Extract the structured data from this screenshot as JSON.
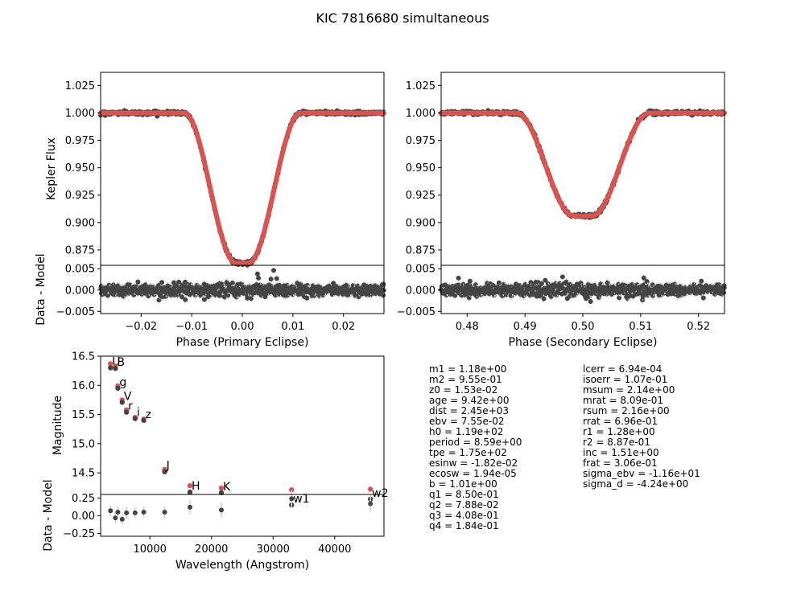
{
  "title": "KIC 7816680 simultaneous",
  "colors": {
    "model": "#d9534f",
    "data": "#444444",
    "errorbar": "#cfcfcf",
    "frame": "#000000"
  },
  "parameters_left": [
    "m1 = 1.18e+00",
    "m2 = 9.55e-01",
    "z0 = 1.53e-02",
    "age = 9.42e+00",
    "dist = 2.45e+03",
    "ebv = 7.55e-02",
    "h0 = 1.19e+02",
    "period = 8.59e+00",
    "tpe = 1.75e+02",
    "esinw = -1.82e-02",
    "ecosw = 1.94e-05",
    "b = 1.01e+00",
    "q1 = 8.50e-01",
    "q2 = 7.88e-02",
    "q3 = 4.08e-01",
    "q4 = 1.84e-01"
  ],
  "parameters_right": [
    "lcerr = 6.94e-04",
    "isoerr = 1.07e-01",
    "msum = 2.14e+00",
    "mrat = 8.09e-01",
    "rsum = 2.16e+00",
    "rrat = 6.96e-01",
    "r1 = 1.28e+00",
    "r2 = 8.87e-01",
    "inc = 1.51e+00",
    "frat = 3.06e-01",
    "sigma_ebv = -1.16e+01",
    "sigma_d = -4.24e+00"
  ],
  "chart_data": [
    {
      "id": "primary",
      "type": "scatter",
      "xlabel": "Phase (Primary Eclipse)",
      "ylabel": "Kepler Flux",
      "resid_ylabel": "Data - Model",
      "xlim": [
        -0.028,
        0.028
      ],
      "ylim": [
        0.861,
        1.037
      ],
      "resid_ylim": [
        -0.0055,
        0.0058
      ],
      "xticks": [
        -0.02,
        -0.01,
        0.0,
        0.01,
        0.02
      ],
      "xticklabels": [
        "−0.02",
        "−0.01",
        "0.00",
        "0.01",
        "0.02"
      ],
      "yticks": [
        0.875,
        0.9,
        0.925,
        0.95,
        0.975,
        1.0,
        1.025
      ],
      "yticklabels": [
        "0.875",
        "0.900",
        "0.925",
        "0.950",
        "0.975",
        "1.000",
        "1.025"
      ],
      "resid_yticks": [
        -0.005,
        0.0,
        0.005
      ],
      "resid_yticklabels": [
        "−0.005",
        "0.000",
        "0.005"
      ],
      "eclipse": {
        "center": 0.0,
        "depth": 0.137,
        "ingress_halfwidth": 0.0115,
        "bottom_halfwidth": 0.0012
      },
      "residual_outliers": [
        [
          -0.0075,
          -0.0022
        ],
        [
          -0.0045,
          -0.0013
        ],
        [
          0.001,
          -0.0019
        ],
        [
          0.003,
          0.0038
        ],
        [
          0.0062,
          0.0046
        ],
        [
          0.0068,
          0.0027
        ],
        [
          0.0032,
          0.0028
        ],
        [
          0.018,
          0.0016
        ],
        [
          0.0045,
          -0.0016
        ]
      ]
    },
    {
      "id": "secondary",
      "type": "scatter",
      "xlabel": "Phase (Secondary Eclipse)",
      "ylabel": "",
      "resid_ylabel": "",
      "xlim": [
        0.4755,
        0.5245
      ],
      "ylim": [
        0.861,
        1.037
      ],
      "resid_ylim": [
        -0.0055,
        0.0058
      ],
      "xticks": [
        0.48,
        0.49,
        0.5,
        0.51,
        0.52
      ],
      "xticklabels": [
        "0.48",
        "0.49",
        "0.50",
        "0.51",
        "0.52"
      ],
      "yticks": [
        0.875,
        0.9,
        0.925,
        0.95,
        0.975,
        1.0,
        1.025
      ],
      "yticklabels": [
        "0.875",
        "0.900",
        "0.925",
        "0.950",
        "0.975",
        "1.000",
        "1.025"
      ],
      "resid_yticks": [
        -0.005,
        0.0,
        0.005
      ],
      "resid_yticklabels": [
        "−0.005",
        "0.000",
        "0.005"
      ],
      "eclipse": {
        "center": 0.5,
        "depth": 0.094,
        "ingress_halfwidth": 0.0115,
        "bottom_halfwidth": 0.0015
      },
      "residual_outliers": [
        [
          0.4785,
          0.0028
        ],
        [
          0.4805,
          0.0021
        ],
        [
          0.4935,
          0.0023
        ],
        [
          0.4965,
          0.0031
        ],
        [
          0.5205,
          0.0021
        ],
        [
          0.4855,
          0.0017
        ],
        [
          0.5005,
          -0.0018
        ],
        [
          0.4925,
          -0.0014
        ]
      ]
    },
    {
      "id": "sed",
      "type": "scatter",
      "xlabel": "Wavelength (Angstrom)",
      "ylabel": "Magnitude",
      "resid_ylabel": "Data - Model",
      "xlim": [
        2000,
        48000
      ],
      "ylim": [
        14.13,
        16.5
      ],
      "y_inverted": true,
      "resid_ylim": [
        -0.29,
        0.3
      ],
      "xticks": [
        10000,
        20000,
        30000,
        40000
      ],
      "xticklabels": [
        "10000",
        "20000",
        "30000",
        "40000"
      ],
      "yticks": [
        14.0,
        14.5,
        15.0,
        15.5,
        16.0,
        16.5
      ],
      "yticklabels": [
        "14.0",
        "14.5",
        "15.0",
        "15.5",
        "16.0",
        "16.5"
      ],
      "resid_yticks": [
        -0.25,
        0.0,
        0.25
      ],
      "resid_yticklabels": [
        "−0.25",
        "0.00",
        "0.25"
      ],
      "bands": [
        {
          "label": "U",
          "wave": 3600,
          "data": 16.3,
          "model": 16.37,
          "resid": 0.07,
          "err": 0.08
        },
        {
          "label": "B",
          "wave": 4400,
          "data": 16.29,
          "model": 16.33,
          "resid": -0.03,
          "err": 0.08
        },
        {
          "label": "g",
          "wave": 4800,
          "data": 15.95,
          "model": 15.99,
          "resid": 0.05,
          "err": 0.08
        },
        {
          "label": "V",
          "wave": 5500,
          "data": 15.71,
          "model": 15.75,
          "resid": -0.05,
          "err": 0.08
        },
        {
          "label": "r",
          "wave": 6200,
          "data": 15.54,
          "model": 15.58,
          "resid": 0.04,
          "err": 0.08
        },
        {
          "label": "i",
          "wave": 7600,
          "data": 15.43,
          "model": 15.45,
          "resid": 0.04,
          "err": 0.08
        },
        {
          "label": "z",
          "wave": 9000,
          "data": 15.4,
          "model": 15.42,
          "resid": 0.05,
          "err": 0.08
        },
        {
          "label": "J",
          "wave": 12400,
          "data": 14.52,
          "model": 14.56,
          "resid": 0.05,
          "err": 0.08
        },
        {
          "label": "H",
          "wave": 16500,
          "data": 14.17,
          "model": 14.28,
          "resid": 0.12,
          "err": 0.1
        },
        {
          "label": "K",
          "wave": 21600,
          "data": 14.16,
          "model": 14.24,
          "resid": 0.08,
          "err": 0.1
        },
        {
          "label": "w1",
          "wave": 33000,
          "data": 13.95,
          "model": 14.21,
          "resid": 0.24,
          "err": 0.12
        },
        {
          "label": "w2",
          "wave": 45800,
          "data": 14.05,
          "model": 14.22,
          "resid": 0.17,
          "err": 0.12
        }
      ]
    }
  ]
}
